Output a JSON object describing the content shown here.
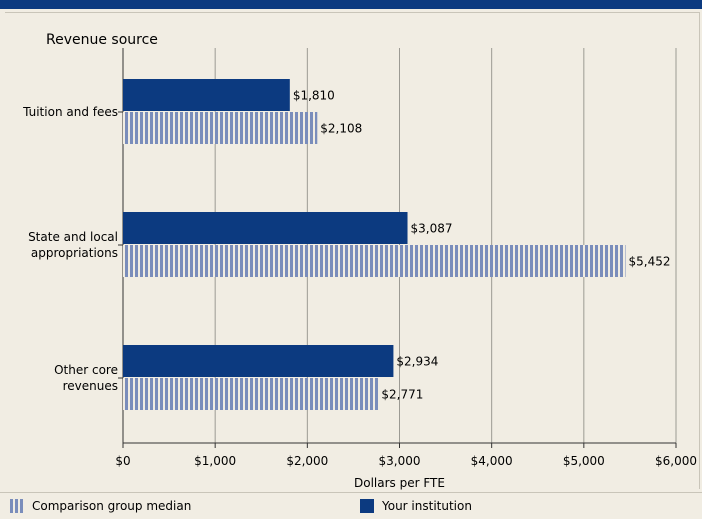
{
  "chart_data": {
    "type": "bar",
    "orientation": "horizontal",
    "title": "Revenue source",
    "xlabel": "Dollars per FTE",
    "ylabel": "",
    "xlim": [
      0,
      6000
    ],
    "grid": true,
    "legend_position": "bottom",
    "categories": [
      [
        "Tuition and fees"
      ],
      [
        "State and local",
        "appropriations"
      ],
      [
        "Other core",
        "revenues"
      ]
    ],
    "x_ticks": [
      "$0",
      "$1,000",
      "$2,000",
      "$3,000",
      "$4,000",
      "$5,000",
      "$6,000"
    ],
    "x_tick_values": [
      0,
      1000,
      2000,
      3000,
      4000,
      5000,
      6000
    ],
    "series": [
      {
        "name": "Your institution",
        "values": [
          1810,
          3087,
          2934
        ],
        "labels": [
          "$1,810",
          "$3,087",
          "$2,934"
        ],
        "color": "#0c3a80",
        "pattern": "solid"
      },
      {
        "name": "Comparison group median",
        "values": [
          2108,
          5452,
          2771
        ],
        "labels": [
          "$2,108",
          "$5,452",
          "$2,771"
        ],
        "color": "#7a8dbb",
        "pattern": "striped"
      }
    ]
  },
  "legend": {
    "items": [
      {
        "label": "Comparison group median",
        "pattern": "striped"
      },
      {
        "label": "Your institution",
        "pattern": "solid"
      }
    ]
  },
  "colors": {
    "header_bar": "#0c3a80",
    "background": "#f1ede3",
    "grid": "#9c9a93"
  }
}
